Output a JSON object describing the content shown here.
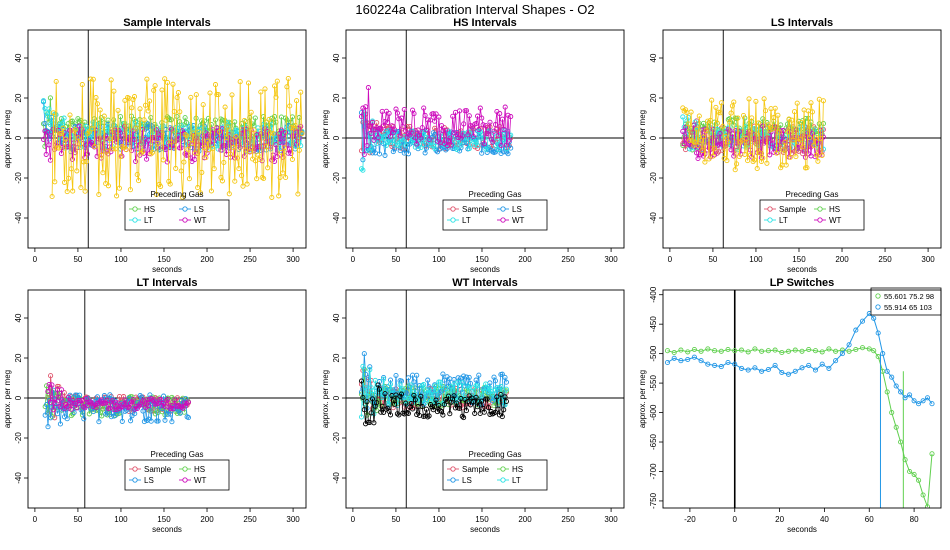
{
  "title": "160224a   Calibration Interval Shapes - O2",
  "chart_data": [
    {
      "type": "scatter",
      "title": "Sample Intervals",
      "xlabel": "seconds",
      "ylabel": "approx. per meg",
      "xlim": [
        -8,
        315
      ],
      "ylim": [
        -55,
        54
      ],
      "xticks": [
        0,
        50,
        100,
        150,
        200,
        250,
        300
      ],
      "yticks": [
        -40,
        -20,
        0,
        20,
        40
      ],
      "vline": 62,
      "hline": 0,
      "legend_title": "Preceding Gas",
      "series": [
        {
          "name": "HS",
          "color": "#61D04F",
          "x_range": [
            10,
            312
          ],
          "base": 5,
          "amp": 6,
          "seed": 11
        },
        {
          "name": "LS",
          "color": "#2297E6",
          "x_range": [
            10,
            312
          ],
          "base": 0,
          "amp": 7,
          "seed": 23
        },
        {
          "name": "LT",
          "color": "#28E2E5",
          "x_range": [
            10,
            312
          ],
          "base": 1,
          "amp": 7,
          "seed": 37
        },
        {
          "name": "WT",
          "color": "#CD0BBC",
          "x_range": [
            10,
            312
          ],
          "base": -3,
          "amp": 9,
          "seed": 41
        }
      ],
      "extra": [
        {
          "name": "LT",
          "color": "#F5C710",
          "x_range": [
            20,
            312
          ],
          "base": 0,
          "amp": 30,
          "seed": 53
        }
      ]
    },
    {
      "type": "scatter",
      "title": "HS Intervals",
      "xlabel": "seconds",
      "ylabel": "approx. per meg",
      "xlim": [
        -8,
        315
      ],
      "ylim": [
        -55,
        54
      ],
      "xticks": [
        0,
        50,
        100,
        150,
        200,
        250,
        300
      ],
      "yticks": [
        -40,
        -20,
        0,
        20,
        40
      ],
      "vline": 62,
      "hline": 0,
      "legend_title": "Preceding Gas",
      "series": [
        {
          "name": "Sample",
          "color": "#DF536B",
          "x_range": [
            10,
            185
          ],
          "base": 0,
          "amp": 6,
          "seed": 61
        },
        {
          "name": "LS",
          "color": "#2297E6",
          "x_range": [
            10,
            185
          ],
          "base": -2,
          "amp": 6,
          "seed": 67
        },
        {
          "name": "LT",
          "color": "#28E2E5",
          "x_range": [
            10,
            185
          ],
          "base": -1,
          "amp": 5,
          "seed": 71
        },
        {
          "name": "WT",
          "color": "#CD0BBC",
          "x_range": [
            10,
            185
          ],
          "base": 6,
          "amp": 10,
          "seed": 79
        }
      ]
    },
    {
      "type": "scatter",
      "title": "LS Intervals",
      "xlabel": "seconds",
      "ylabel": "approx. per meg",
      "xlim": [
        -8,
        315
      ],
      "ylim": [
        -55,
        54
      ],
      "xticks": [
        0,
        50,
        100,
        150,
        200,
        250,
        300
      ],
      "yticks": [
        -40,
        -20,
        0,
        20,
        40
      ],
      "vline": 62,
      "hline": 0,
      "legend_title": "Preceding Gas",
      "series": [
        {
          "name": "Sample",
          "color": "#DF536B",
          "x_range": [
            15,
            180
          ],
          "base": -1,
          "amp": 7,
          "seed": 83
        },
        {
          "name": "HS",
          "color": "#61D04F",
          "x_range": [
            15,
            180
          ],
          "base": 3,
          "amp": 7,
          "seed": 89
        },
        {
          "name": "LT",
          "color": "#28E2E5",
          "x_range": [
            15,
            180
          ],
          "base": 0,
          "amp": 6,
          "seed": 97
        },
        {
          "name": "WT",
          "color": "#CD0BBC",
          "x_range": [
            15,
            180
          ],
          "base": -2,
          "amp": 8,
          "seed": 101
        }
      ],
      "extra": [
        {
          "name": "LT",
          "color": "#F5C710",
          "x_range": [
            15,
            180
          ],
          "base": 2,
          "amp": 18,
          "seed": 103
        }
      ]
    },
    {
      "type": "scatter",
      "title": "LT Intervals",
      "xlabel": "seconds",
      "ylabel": "approx. per meg",
      "xlim": [
        -8,
        315
      ],
      "ylim": [
        -55,
        54
      ],
      "xticks": [
        0,
        50,
        100,
        150,
        200,
        250,
        300
      ],
      "yticks": [
        -40,
        -20,
        0,
        20,
        40
      ],
      "vline": 58,
      "hline": 0,
      "legend_title": "Preceding Gas",
      "series": [
        {
          "name": "Sample",
          "color": "#DF536B",
          "x_range": [
            15,
            180
          ],
          "base": -3,
          "amp": 4,
          "seed": 107
        },
        {
          "name": "HS",
          "color": "#61D04F",
          "x_range": [
            12,
            180
          ],
          "base": -4,
          "amp": 5,
          "seed": 109
        },
        {
          "name": "LS",
          "color": "#2297E6",
          "x_range": [
            12,
            180
          ],
          "base": -5,
          "amp": 7,
          "seed": 113
        },
        {
          "name": "WT",
          "color": "#CD0BBC",
          "x_range": [
            15,
            180
          ],
          "base": -3,
          "amp": 3,
          "seed": 127
        }
      ]
    },
    {
      "type": "scatter",
      "title": "WT Intervals",
      "xlabel": "seconds",
      "ylabel": "approx. per meg",
      "xlim": [
        -8,
        315
      ],
      "ylim": [
        -55,
        54
      ],
      "xticks": [
        0,
        50,
        100,
        150,
        200,
        250,
        300
      ],
      "yticks": [
        -40,
        -20,
        0,
        20,
        40
      ],
      "vline": 62,
      "hline": 0,
      "legend_title": "Preceding Gas",
      "series": [
        {
          "name": "Sample",
          "color": "#DF536B",
          "x_range": [
            10,
            180
          ],
          "base": 0,
          "amp": 5,
          "seed": 131
        },
        {
          "name": "HS",
          "color": "#61D04F",
          "x_range": [
            10,
            180
          ],
          "base": 1,
          "amp": 5,
          "seed": 137
        },
        {
          "name": "LS",
          "color": "#2297E6",
          "x_range": [
            10,
            180
          ],
          "base": 4,
          "amp": 8,
          "seed": 139
        },
        {
          "name": "LT",
          "color": "#28E2E5",
          "x_range": [
            10,
            180
          ],
          "base": 2,
          "amp": 6,
          "seed": 149
        }
      ],
      "extra": [
        {
          "name": "WT",
          "color": "#000000",
          "x_range": [
            10,
            180
          ],
          "base": -4,
          "amp": 6,
          "seed": 151
        }
      ]
    },
    {
      "type": "line",
      "title": "LP Switches",
      "xlabel": "seconds",
      "ylabel": "approx. per meg",
      "xlim": [
        -32,
        92
      ],
      "ylim": [
        -762,
        -392
      ],
      "xticks": [
        -20,
        0,
        20,
        40,
        60,
        80
      ],
      "yticks": [
        -750,
        -700,
        -650,
        -600,
        -550,
        -500,
        -450,
        -400
      ],
      "vline": 0,
      "legend_entries": [
        "55.601 75.2 98",
        "55.914 65 103"
      ],
      "series": [
        {
          "name": "55.601 75.2 98",
          "color": "#61D04F",
          "drop_x": 75.2,
          "x": [
            -30,
            -27,
            -24,
            -21,
            -18,
            -15,
            -12,
            -9,
            -6,
            -3,
            0,
            3,
            6,
            9,
            12,
            15,
            18,
            21,
            24,
            27,
            30,
            33,
            36,
            39,
            42,
            45,
            48,
            51,
            54,
            57,
            60,
            62,
            64,
            66,
            68,
            70,
            72,
            74,
            76,
            78,
            80,
            82,
            84,
            86,
            88
          ],
          "y": [
            -495,
            -498,
            -494,
            -497,
            -493,
            -496,
            -492,
            -495,
            -496,
            -493,
            -495,
            -494,
            -497,
            -492,
            -496,
            -495,
            -494,
            -498,
            -496,
            -494,
            -496,
            -493,
            -495,
            -497,
            -492,
            -496,
            -494,
            -496,
            -493,
            -490,
            -492,
            -495,
            -505,
            -530,
            -565,
            -600,
            -625,
            -650,
            -680,
            -700,
            -705,
            -715,
            -740,
            -760,
            -670
          ]
        },
        {
          "name": "55.914 65 103",
          "color": "#2297E6",
          "drop_x": 65,
          "x": [
            -30,
            -27,
            -24,
            -21,
            -18,
            -15,
            -12,
            -9,
            -6,
            -3,
            0,
            3,
            6,
            9,
            12,
            15,
            18,
            21,
            24,
            27,
            30,
            33,
            36,
            39,
            42,
            45,
            48,
            51,
            54,
            57,
            60,
            62,
            64,
            66,
            68,
            70,
            72,
            74,
            76,
            78,
            80,
            82,
            84,
            86,
            88
          ],
          "y": [
            -515,
            -508,
            -512,
            -510,
            -506,
            -512,
            -518,
            -520,
            -522,
            -515,
            -518,
            -525,
            -528,
            -524,
            -530,
            -527,
            -520,
            -532,
            -535,
            -530,
            -524,
            -520,
            -528,
            -518,
            -525,
            -512,
            -500,
            -485,
            -460,
            -445,
            -432,
            -440,
            -465,
            -500,
            -530,
            -540,
            -555,
            -565,
            -575,
            -570,
            -580,
            -585,
            -580,
            -575,
            -585
          ]
        }
      ]
    }
  ]
}
